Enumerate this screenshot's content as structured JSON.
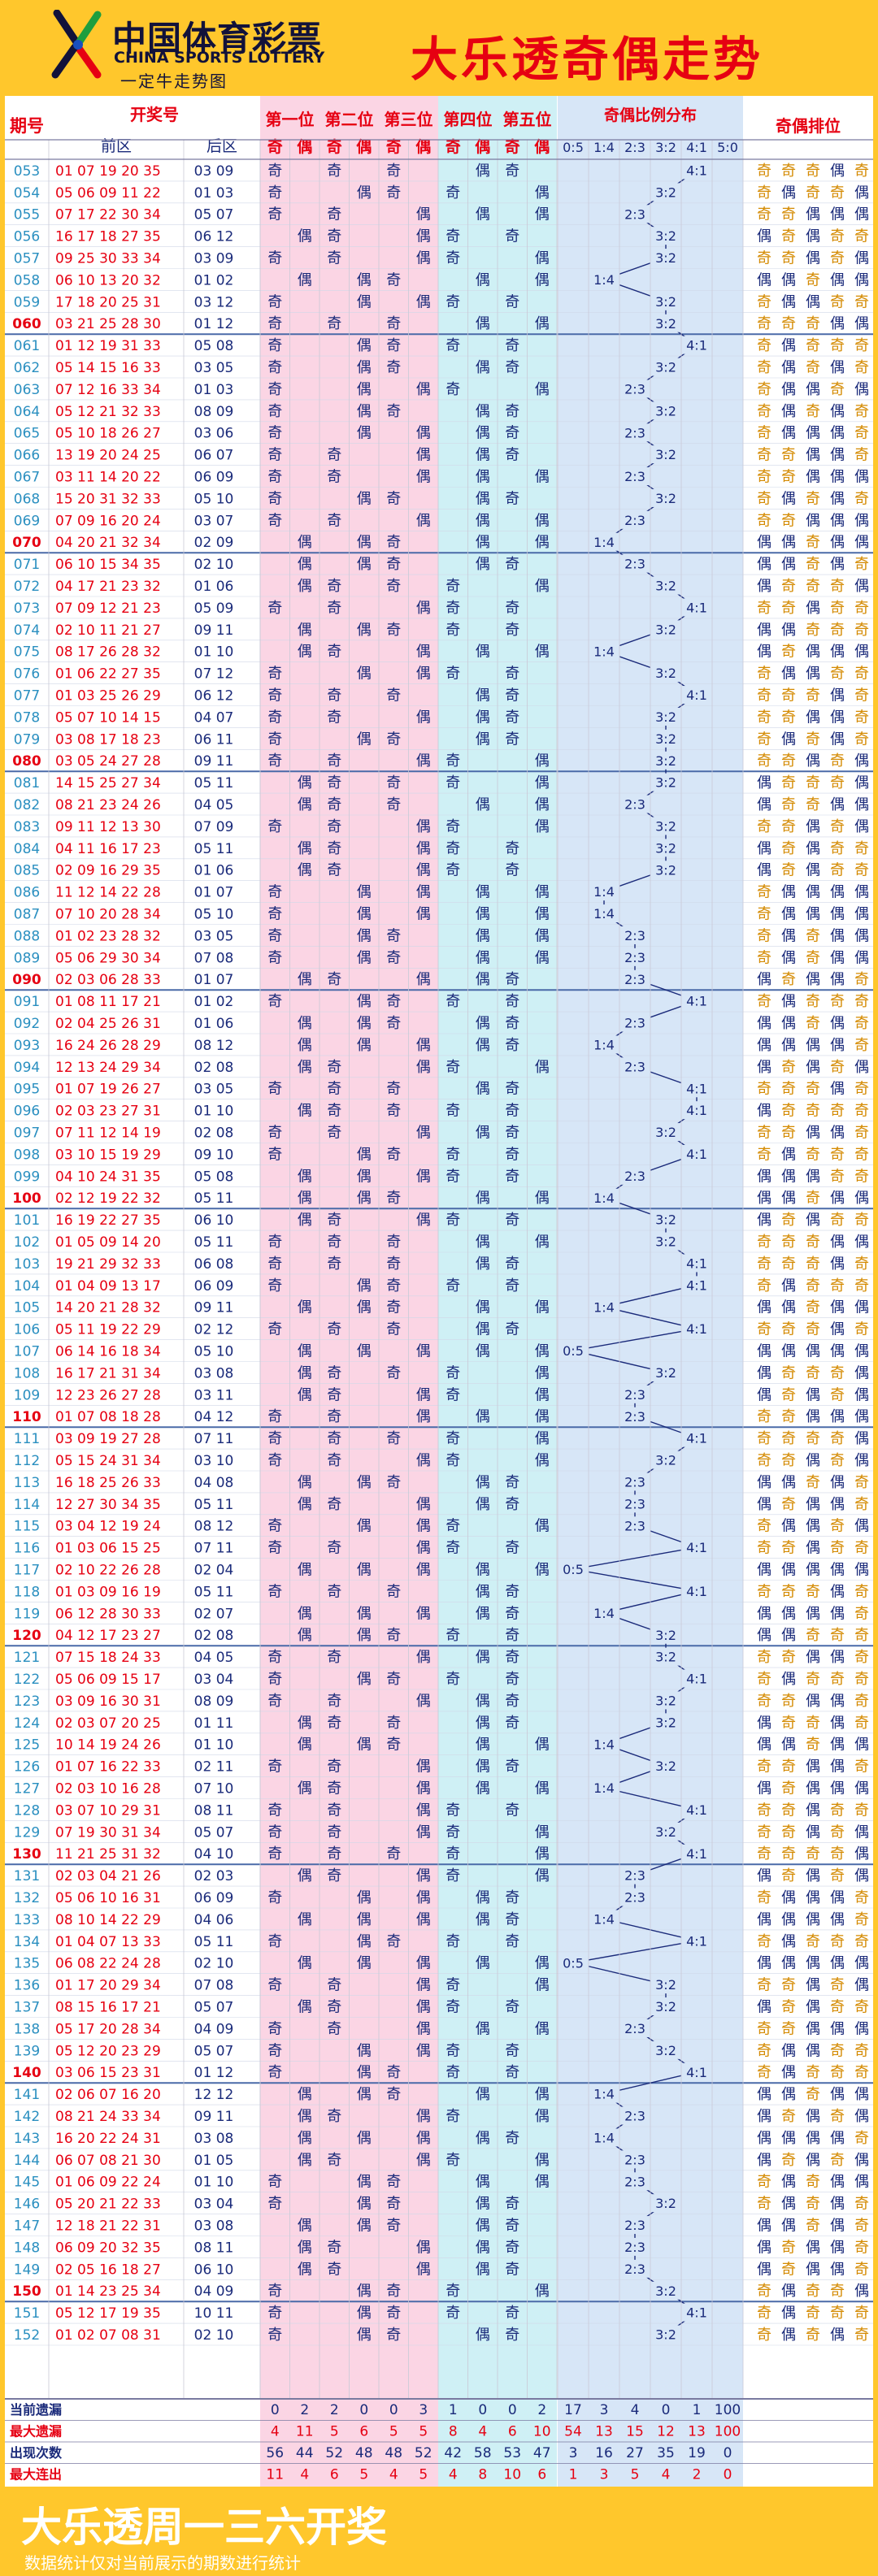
{
  "header": {
    "logo_cn": "中国体育彩票",
    "logo_en": "CHINA SPORTS LOTTERY",
    "logo_slogan": "一定牛走势图",
    "title": "大乐透奇偶走势"
  },
  "table_headers": {
    "period": "期号",
    "draw": "开奖号",
    "front": "前区",
    "back": "后区",
    "positions": [
      "第一位",
      "第二位",
      "第三位",
      "第四位",
      "第五位"
    ],
    "odd": "奇",
    "even": "偶",
    "ratio_title": "奇偶比例分布",
    "ratios": [
      "0:5",
      "1:4",
      "2:3",
      "3:2",
      "4:1",
      "5:0"
    ],
    "order_title": "奇偶排位"
  },
  "colors": {
    "odd_text": "#1a2a7a",
    "even_text": "#1a2a7a",
    "accent": "#e60012",
    "order_odd": "#d48a00",
    "order_even": "#1a2a7a"
  },
  "chart_data": {
    "type": "table",
    "rows": [
      [
        "053",
        "01 07 19 20 35",
        "03 09"
      ],
      [
        "054",
        "05 06 09 11 22",
        "01 03"
      ],
      [
        "055",
        "07 17 22 30 34",
        "05 07"
      ],
      [
        "056",
        "16 17 18 27 35",
        "06 12"
      ],
      [
        "057",
        "09 25 30 33 34",
        "03 09"
      ],
      [
        "058",
        "06 10 13 20 32",
        "01 02"
      ],
      [
        "059",
        "17 18 20 25 31",
        "03 12"
      ],
      [
        "060",
        "03 21 25 28 30",
        "01 12"
      ],
      [
        "061",
        "01 12 19 31 33",
        "05 08"
      ],
      [
        "062",
        "05 14 15 16 33",
        "03 05"
      ],
      [
        "063",
        "07 12 16 33 34",
        "01 03"
      ],
      [
        "064",
        "05 12 21 32 33",
        "08 09"
      ],
      [
        "065",
        "05 10 18 26 27",
        "03 06"
      ],
      [
        "066",
        "13 19 20 24 25",
        "06 07"
      ],
      [
        "067",
        "03 11 14 20 22",
        "06 09"
      ],
      [
        "068",
        "15 20 31 32 33",
        "05 10"
      ],
      [
        "069",
        "07 09 16 20 24",
        "03 07"
      ],
      [
        "070",
        "04 20 21 32 34",
        "02 09"
      ],
      [
        "071",
        "06 10 15 34 35",
        "02 10"
      ],
      [
        "072",
        "04 17 21 23 32",
        "01 06"
      ],
      [
        "073",
        "07 09 12 21 23",
        "05 09"
      ],
      [
        "074",
        "02 10 11 21 27",
        "09 11"
      ],
      [
        "075",
        "08 17 26 28 32",
        "01 10"
      ],
      [
        "076",
        "01 06 22 27 35",
        "07 12"
      ],
      [
        "077",
        "01 03 25 26 29",
        "06 12"
      ],
      [
        "078",
        "05 07 10 14 15",
        "04 07"
      ],
      [
        "079",
        "03 08 17 18 23",
        "06 11"
      ],
      [
        "080",
        "03 05 24 27 28",
        "09 11"
      ],
      [
        "081",
        "14 15 25 27 34",
        "05 11"
      ],
      [
        "082",
        "08 21 23 24 26",
        "04 05"
      ],
      [
        "083",
        "09 11 12 13 30",
        "07 09"
      ],
      [
        "084",
        "04 11 16 17 23",
        "05 11"
      ],
      [
        "085",
        "02 09 16 29 35",
        "01 06"
      ],
      [
        "086",
        "11 12 14 22 28",
        "01 07"
      ],
      [
        "087",
        "07 10 20 28 34",
        "05 10"
      ],
      [
        "088",
        "01 02 23 28 32",
        "03 05"
      ],
      [
        "089",
        "05 06 29 30 34",
        "07 08"
      ],
      [
        "090",
        "02 03 06 28 33",
        "01 07"
      ],
      [
        "091",
        "01 08 11 17 21",
        "01 02"
      ],
      [
        "092",
        "02 04 25 26 31",
        "01 06"
      ],
      [
        "093",
        "16 24 26 28 29",
        "08 12"
      ],
      [
        "094",
        "12 13 24 29 34",
        "02 08"
      ],
      [
        "095",
        "01 07 19 26 27",
        "03 05"
      ],
      [
        "096",
        "02 03 23 27 31",
        "01 10"
      ],
      [
        "097",
        "07 11 12 14 19",
        "02 08"
      ],
      [
        "098",
        "03 10 15 19 29",
        "09 10"
      ],
      [
        "099",
        "04 10 24 31 35",
        "05 08"
      ],
      [
        "100",
        "02 12 19 22 32",
        "05 11"
      ],
      [
        "101",
        "16 19 22 27 35",
        "06 10"
      ],
      [
        "102",
        "01 05 09 14 20",
        "05 11"
      ],
      [
        "103",
        "19 21 29 32 33",
        "06 08"
      ],
      [
        "104",
        "01 04 09 13 17",
        "06 09"
      ],
      [
        "105",
        "14 20 21 28 32",
        "09 11"
      ],
      [
        "106",
        "05 11 19 22 29",
        "02 12"
      ],
      [
        "107",
        "06 14 16 18 34",
        "05 10"
      ],
      [
        "108",
        "16 17 21 31 34",
        "03 08"
      ],
      [
        "109",
        "12 23 26 27 28",
        "03 11"
      ],
      [
        "110",
        "01 07 08 18 28",
        "04 12"
      ],
      [
        "111",
        "03 09 19 27 28",
        "07 11"
      ],
      [
        "112",
        "05 15 24 31 34",
        "03 10"
      ],
      [
        "113",
        "16 18 25 26 33",
        "04 08"
      ],
      [
        "114",
        "12 27 30 34 35",
        "05 11"
      ],
      [
        "115",
        "03 04 12 19 24",
        "08 12"
      ],
      [
        "116",
        "01 03 06 15 25",
        "07 11"
      ],
      [
        "117",
        "02 10 22 26 28",
        "02 04"
      ],
      [
        "118",
        "01 03 09 16 19",
        "05 11"
      ],
      [
        "119",
        "06 12 28 30 33",
        "02 07"
      ],
      [
        "120",
        "04 12 17 23 27",
        "02 08"
      ],
      [
        "121",
        "07 15 18 24 33",
        "04 05"
      ],
      [
        "122",
        "05 06 09 15 17",
        "03 04"
      ],
      [
        "123",
        "03 09 16 30 31",
        "08 09"
      ],
      [
        "124",
        "02 03 07 20 25",
        "01 11"
      ],
      [
        "125",
        "10 14 19 24 26",
        "01 10"
      ],
      [
        "126",
        "01 07 16 22 33",
        "02 11"
      ],
      [
        "127",
        "02 03 10 16 28",
        "07 10"
      ],
      [
        "128",
        "03 07 10 29 31",
        "08 11"
      ],
      [
        "129",
        "07 19 30 31 34",
        "05 07"
      ],
      [
        "130",
        "11 21 25 31 32",
        "04 10"
      ],
      [
        "131",
        "02 03 04 21 26",
        "02 03"
      ],
      [
        "132",
        "05 06 10 16 31",
        "06 09"
      ],
      [
        "133",
        "08 10 14 22 29",
        "04 06"
      ],
      [
        "134",
        "01 04 07 13 33",
        "05 11"
      ],
      [
        "135",
        "06 08 22 24 28",
        "02 10"
      ],
      [
        "136",
        "01 17 20 29 34",
        "07 08"
      ],
      [
        "137",
        "08 15 16 17 21",
        "05 07"
      ],
      [
        "138",
        "05 17 20 28 34",
        "04 09"
      ],
      [
        "139",
        "05 12 20 23 29",
        "05 07"
      ],
      [
        "140",
        "03 06 15 23 31",
        "01 12"
      ],
      [
        "141",
        "02 06 07 16 20",
        "12 12"
      ],
      [
        "142",
        "08 21 24 33 34",
        "09 11"
      ],
      [
        "143",
        "16 20 22 24 31",
        "03 08"
      ],
      [
        "144",
        "06 07 08 21 30",
        "01 05"
      ],
      [
        "145",
        "01 06 09 22 24",
        "01 10"
      ],
      [
        "146",
        "05 20 21 22 33",
        "03 04"
      ],
      [
        "147",
        "12 18 21 22 31",
        "03 08"
      ],
      [
        "148",
        "06 09 20 32 35",
        "08 11"
      ],
      [
        "149",
        "02 05 16 18 27",
        "06 10"
      ],
      [
        "150",
        "01 14 23 25 34",
        "04 09"
      ],
      [
        "151",
        "05 12 17 19 35",
        "10 11"
      ],
      [
        "152",
        "01 02 07 08 31",
        "02 10"
      ]
    ]
  },
  "stats": {
    "labels": [
      "当前遗漏",
      "最大遗漏",
      "出现次数",
      "最大连出"
    ],
    "rows": [
      [
        "0",
        "2",
        "2",
        "0",
        "0",
        "3",
        "1",
        "0",
        "0",
        "2",
        "17",
        "3",
        "4",
        "0",
        "1",
        "100"
      ],
      [
        "4",
        "11",
        "5",
        "6",
        "5",
        "5",
        "8",
        "4",
        "6",
        "10",
        "54",
        "13",
        "15",
        "12",
        "13",
        "100"
      ],
      [
        "56",
        "44",
        "52",
        "48",
        "48",
        "52",
        "42",
        "58",
        "53",
        "47",
        "3",
        "16",
        "27",
        "35",
        "19",
        "0"
      ],
      [
        "11",
        "4",
        "6",
        "5",
        "4",
        "5",
        "4",
        "8",
        "10",
        "6",
        "1",
        "3",
        "5",
        "4",
        "2",
        "0"
      ]
    ]
  },
  "footer": {
    "title": "大乐透周一三六开奖",
    "note": "数据统计仅对当前展示的期数进行统计"
  }
}
